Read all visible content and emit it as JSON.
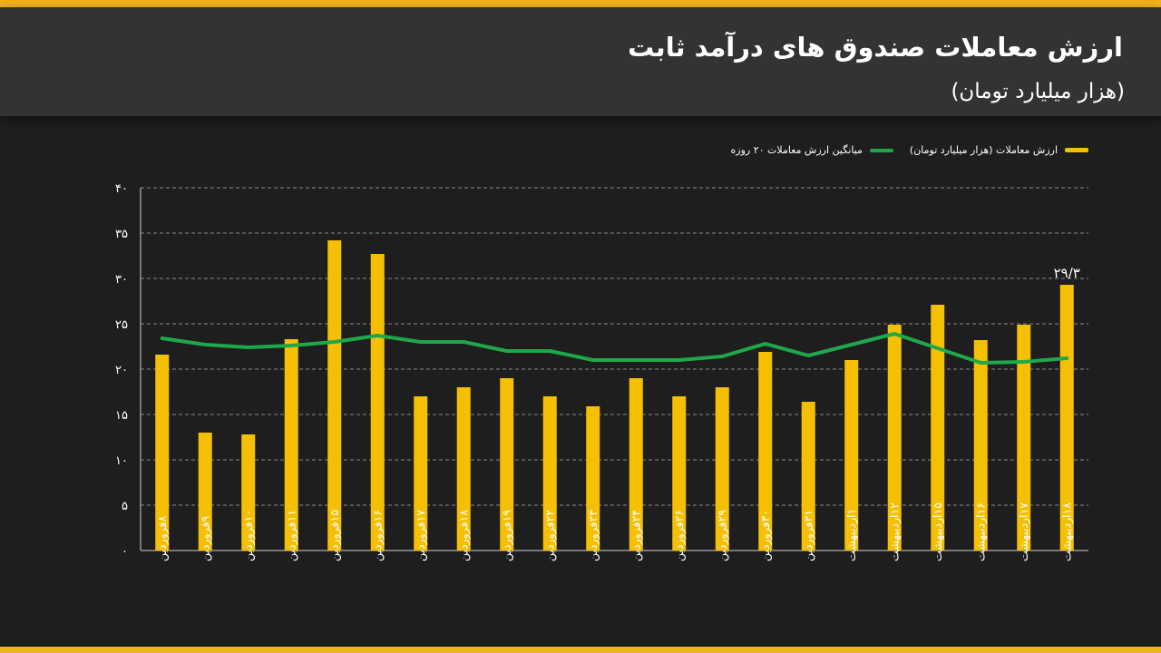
{
  "colors": {
    "accent": "#f0b21b",
    "bar": "#f5c003",
    "line": "#1ea84a",
    "background": "#1f1e1e",
    "header": "#343333"
  },
  "header": {
    "title": "ارزش معاملات صندوق های درآمد ثابت",
    "subtitle": "(هزار میلیارد تومان)"
  },
  "legend": {
    "bar_label": "ارزش معاملات (هزار میلیارد تومان)",
    "line_label": "میانگین ارزش معاملات ۲۰ روزه"
  },
  "chart_data": {
    "type": "bar",
    "title": "ارزش معاملات صندوق های درآمد ثابت",
    "subtitle": "(هزار میلیارد تومان)",
    "categories": [
      "۸فروردین",
      "۹فروردین",
      "۱۰فروردین",
      "۱۱فروردین",
      "۱۵فروردین",
      "۱۶فروردین",
      "۱۷فروردین",
      "۱۸فروردین",
      "۱۹فروردین",
      "۲۲فروردین",
      "۲۳فروردین",
      "۲۴فروردین",
      "۲۶فروردین",
      "۲۹فروردین",
      "۳۰فروردین",
      "۳۱فروردین",
      "۱اردیبهشت",
      "۱۲اردیبهشت",
      "۱۵اردیبهشت",
      "۱۶اردیبهشت",
      "۱۷اردیبهشت",
      "۱۸اردیبهشت"
    ],
    "series": [
      {
        "name": "ارزش معاملات (هزار میلیارد تومان)",
        "type": "bar",
        "values": [
          21.6,
          13.0,
          12.8,
          23.3,
          34.2,
          32.7,
          17.0,
          18.0,
          19.0,
          17.0,
          15.9,
          19.0,
          17.0,
          18.0,
          21.9,
          16.4,
          21.0,
          24.9,
          27.1,
          23.2,
          24.9,
          29.3
        ]
      },
      {
        "name": "میانگین ارزش معاملات ۲۰ روزه",
        "type": "line",
        "values": [
          23.4,
          22.7,
          22.4,
          22.6,
          23.0,
          23.7,
          23.0,
          23.0,
          22.0,
          22.0,
          21.0,
          21.0,
          21.0,
          21.4,
          22.8,
          21.5,
          22.7,
          23.9,
          22.3,
          20.7,
          20.8,
          21.2
        ]
      }
    ],
    "yticks": [
      "۰",
      "۵",
      "۱۰",
      "۱۵",
      "۲۰",
      "۲۵",
      "۳۰",
      "۳۵",
      "۴۰"
    ],
    "ylim": [
      0,
      40
    ],
    "data_labels": [
      {
        "index": 21,
        "text": "۲۹/۳"
      }
    ],
    "grid": true,
    "legend_position": "top-right"
  }
}
